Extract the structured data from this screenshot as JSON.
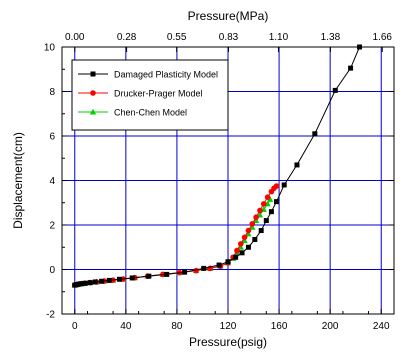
{
  "chart_data": {
    "type": "line",
    "xlabel": "Pressure(psig)",
    "x2label": "Pressure(MPa)",
    "ylabel": "Displacement(cm)",
    "xlim": [
      -10,
      250
    ],
    "ylim": [
      -2,
      10
    ],
    "xticks": [
      0,
      40,
      80,
      120,
      160,
      200,
      240
    ],
    "xtick_labels": [
      "0",
      "40",
      "80",
      "120",
      "160",
      "200",
      "240"
    ],
    "yticks": [
      -2,
      0,
      2,
      4,
      6,
      8,
      10
    ],
    "ytick_labels": [
      "-2",
      "0",
      "2",
      "4",
      "6",
      "8",
      "10"
    ],
    "x2ticks": [
      0,
      40.6,
      79.8,
      120.4,
      159.5,
      200.2,
      240.8
    ],
    "x2tick_labels": [
      "0.00",
      "0.28",
      "0.55",
      "0.83",
      "1.10",
      "1.38",
      "1.66"
    ],
    "grid": true,
    "legend_position": "top-left",
    "series": [
      {
        "name": "Damaged Plasticity Model",
        "color": "#000000",
        "marker": "square",
        "x": [
          0,
          1.5,
          3,
          5,
          8,
          12,
          16,
          21,
          27,
          35,
          45,
          58,
          72,
          86,
          101,
          113,
          120,
          126,
          131,
          136,
          141,
          146,
          150,
          154,
          158,
          164,
          174,
          188,
          204,
          216,
          223
        ],
        "y": [
          -0.7,
          -0.68,
          -0.66,
          -0.64,
          -0.62,
          -0.59,
          -0.56,
          -0.53,
          -0.49,
          -0.44,
          -0.38,
          -0.3,
          -0.22,
          -0.12,
          0.05,
          0.2,
          0.35,
          0.55,
          0.75,
          1.0,
          1.35,
          1.75,
          2.2,
          2.6,
          3.05,
          3.8,
          4.7,
          6.1,
          8.05,
          9.05,
          10.0
        ]
      },
      {
        "name": "Drucker-Prager Model",
        "color": "#ff0000",
        "marker": "circle",
        "x": [
          0,
          1.5,
          3,
          5,
          8,
          12,
          17,
          23,
          30,
          38,
          47,
          57,
          69,
          82,
          95,
          106,
          114,
          120,
          124,
          127,
          130,
          133,
          136,
          139,
          142,
          145,
          148,
          151,
          154,
          156,
          158
        ],
        "y": [
          -0.7,
          -0.68,
          -0.66,
          -0.64,
          -0.62,
          -0.59,
          -0.56,
          -0.52,
          -0.48,
          -0.43,
          -0.37,
          -0.3,
          -0.22,
          -0.14,
          -0.05,
          0.05,
          0.15,
          0.3,
          0.55,
          0.85,
          1.15,
          1.45,
          1.75,
          2.05,
          2.35,
          2.65,
          2.95,
          3.25,
          3.5,
          3.65,
          3.75
        ]
      },
      {
        "name": "Chen-Chen Model",
        "color": "#00d000",
        "marker": "triangle",
        "x": [
          0,
          1.5,
          3,
          5,
          8,
          12,
          17,
          23,
          30,
          38,
          47,
          57,
          69,
          82,
          95,
          106,
          114,
          120,
          124,
          127,
          130,
          133,
          136,
          139,
          142,
          145,
          148,
          151,
          153
        ],
        "y": [
          -0.7,
          -0.68,
          -0.66,
          -0.64,
          -0.62,
          -0.59,
          -0.56,
          -0.52,
          -0.48,
          -0.43,
          -0.37,
          -0.3,
          -0.22,
          -0.14,
          -0.05,
          0.05,
          0.15,
          0.3,
          0.5,
          0.75,
          1.0,
          1.3,
          1.6,
          1.9,
          2.2,
          2.45,
          2.7,
          2.95,
          3.15
        ]
      }
    ],
    "colors": {
      "grid": "#0000cc",
      "frame": "#000000",
      "background": "#ffffff"
    }
  }
}
